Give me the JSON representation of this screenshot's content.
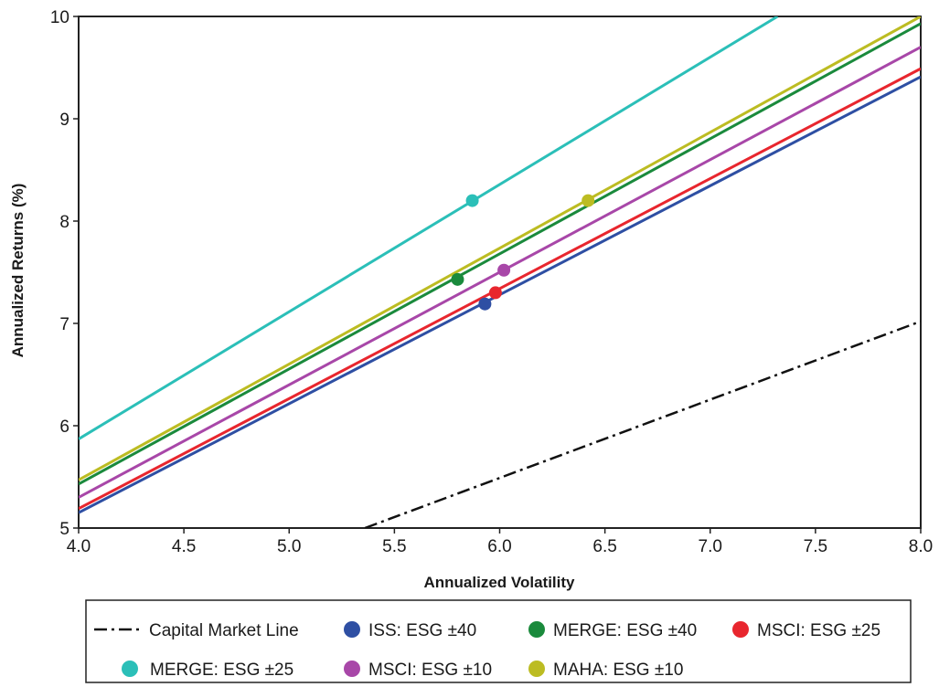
{
  "chart_data": {
    "type": "line",
    "xlabel": "Annualized Volatility",
    "ylabel": "Annualized Returns (%)",
    "xlim": [
      4.0,
      8.0
    ],
    "ylim": [
      5,
      10
    ],
    "xticks": [
      "4.0",
      "4.5",
      "5.0",
      "5.5",
      "6.0",
      "6.5",
      "7.0",
      "7.5",
      "8.0"
    ],
    "yticks": [
      "5",
      "6",
      "7",
      "8",
      "9",
      "10"
    ],
    "grid": false,
    "legend_position": "bottom",
    "capital_market_line": {
      "name": "Capital Market Line",
      "dash": "dash-dot",
      "color": "#111111",
      "points": [
        [
          5.36,
          5.0
        ],
        [
          8.0,
          7.02
        ]
      ]
    },
    "series": [
      {
        "name": "ISS: ESG ±40",
        "color": "#2e4fa3",
        "line": [
          [
            4.0,
            5.15
          ],
          [
            8.0,
            9.41
          ]
        ],
        "point": [
          5.93,
          7.19
        ]
      },
      {
        "name": "MERGE: ESG ±40",
        "color": "#1a8a3c",
        "line": [
          [
            4.0,
            5.43
          ],
          [
            8.0,
            9.93
          ]
        ],
        "point": [
          5.8,
          7.43
        ]
      },
      {
        "name": "MSCI: ESG ±25",
        "color": "#e8262e",
        "line": [
          [
            4.0,
            5.19
          ],
          [
            8.0,
            9.49
          ]
        ],
        "point": [
          5.98,
          7.3
        ]
      },
      {
        "name": "MERGE: ESG ±25",
        "color": "#2bbfb8",
        "line": [
          [
            4.0,
            5.87
          ],
          [
            7.32,
            10.0
          ]
        ],
        "point": [
          5.87,
          8.2
        ]
      },
      {
        "name": "MSCI: ESG ±10",
        "color": "#a847a8",
        "line": [
          [
            4.0,
            5.3
          ],
          [
            8.0,
            9.7
          ]
        ],
        "point": [
          6.02,
          7.52
        ]
      },
      {
        "name": "MAHA: ESG ±10",
        "color": "#bcbc22",
        "line": [
          [
            4.0,
            5.47
          ],
          [
            8.0,
            10.0
          ]
        ],
        "point": [
          6.42,
          8.2
        ]
      }
    ]
  }
}
